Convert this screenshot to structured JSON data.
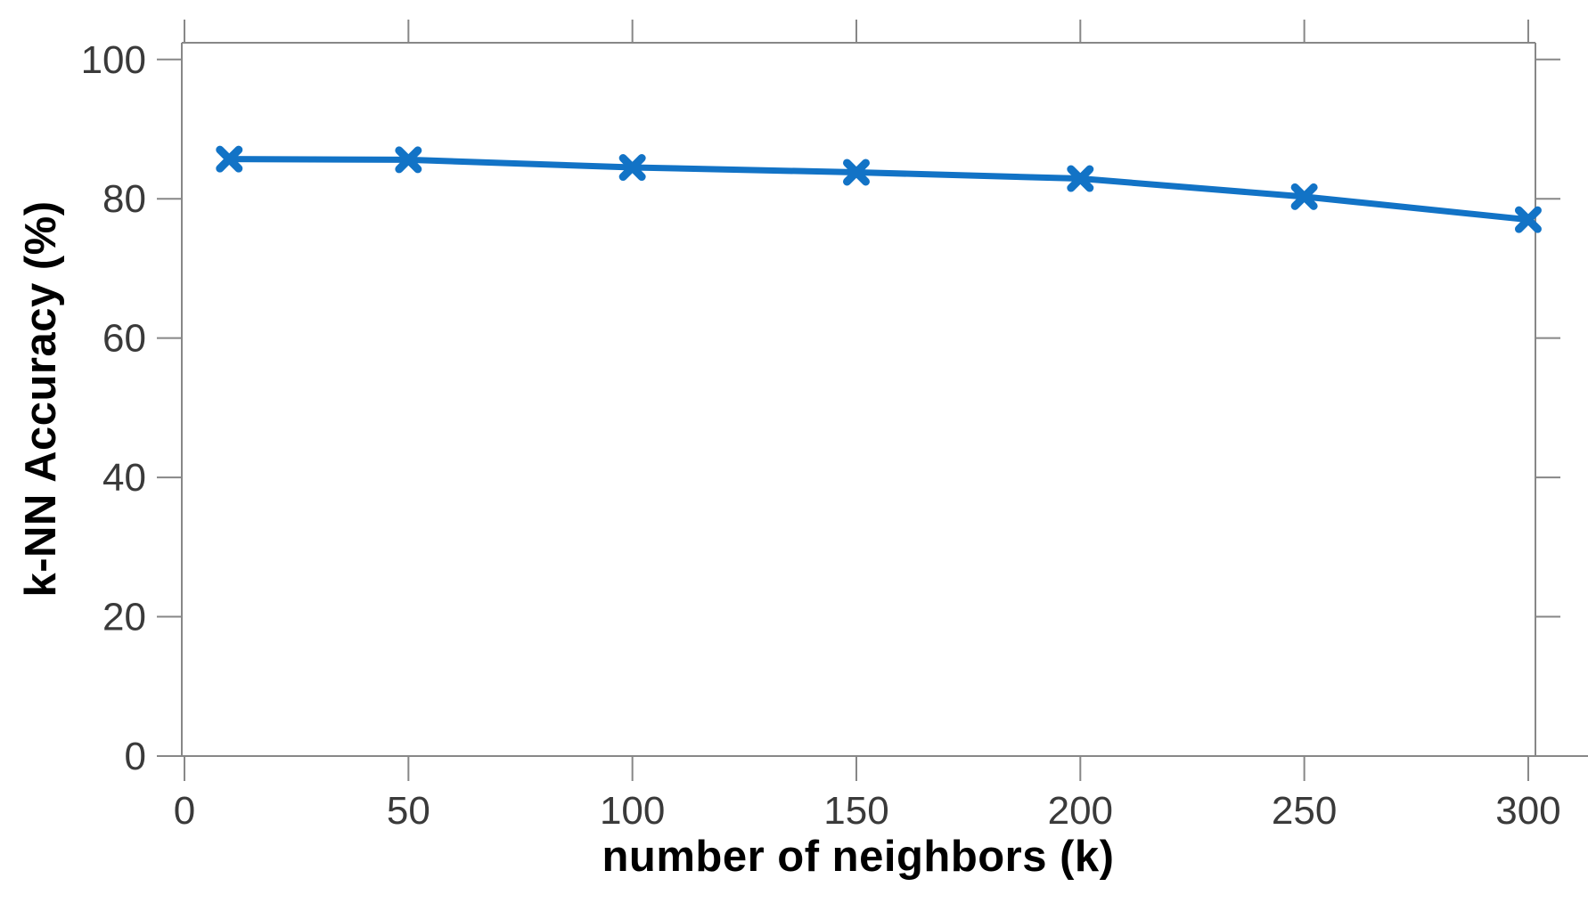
{
  "chart_data": {
    "type": "line",
    "x": [
      10,
      50,
      100,
      150,
      200,
      250,
      300
    ],
    "series": [
      {
        "name": "k-NN accuracy",
        "values": [
          85.7,
          85.6,
          84.5,
          83.8,
          82.9,
          80.3,
          77.0
        ]
      }
    ],
    "title": "",
    "xlabel": "number of neighbors (k)",
    "ylabel": "k-NN Accuracy (%)",
    "x_ticks": [
      0,
      50,
      100,
      150,
      200,
      250,
      300
    ],
    "y_ticks": [
      0,
      20,
      40,
      60,
      80,
      100
    ],
    "xlim": [
      -0.6,
      301.6
    ],
    "ylim": [
      0,
      102.4
    ],
    "grid": false,
    "legend": null,
    "marker": "x",
    "colors": {
      "line": "#1273c6",
      "axis": "#878787",
      "tick_label": "#3a3a3a",
      "axis_label": "#000000",
      "background": "#ffffff"
    }
  }
}
